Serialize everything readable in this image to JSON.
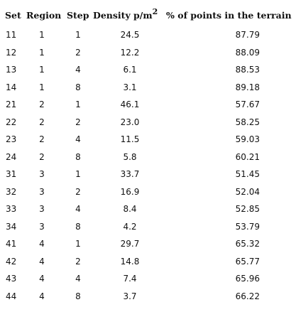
{
  "header": {
    "set": "Set",
    "region": "Region",
    "step": "Step",
    "density": "Density p/m",
    "density_sup": "2",
    "pct": "% of points in the terrain"
  },
  "rows": [
    {
      "set": "11",
      "region": "1",
      "step": "1",
      "density": "24.5",
      "pct": "87.79"
    },
    {
      "set": "12",
      "region": "1",
      "step": "2",
      "density": "12.2",
      "pct": "88.09"
    },
    {
      "set": "13",
      "region": "1",
      "step": "4",
      "density": "6.1",
      "pct": "88.53"
    },
    {
      "set": "14",
      "region": "1",
      "step": "8",
      "density": "3.1",
      "pct": "89.18"
    },
    {
      "set": "21",
      "region": "2",
      "step": "1",
      "density": "46.1",
      "pct": "57.67"
    },
    {
      "set": "22",
      "region": "2",
      "step": "2",
      "density": "23.0",
      "pct": "58.25"
    },
    {
      "set": "23",
      "region": "2",
      "step": "4",
      "density": "11.5",
      "pct": "59.03"
    },
    {
      "set": "24",
      "region": "2",
      "step": "8",
      "density": "5.8",
      "pct": "60.21"
    },
    {
      "set": "31",
      "region": "3",
      "step": "1",
      "density": "33.7",
      "pct": "51.45"
    },
    {
      "set": "32",
      "region": "3",
      "step": "2",
      "density": "16.9",
      "pct": "52.04"
    },
    {
      "set": "33",
      "region": "3",
      "step": "4",
      "density": "8.4",
      "pct": "52.85"
    },
    {
      "set": "34",
      "region": "3",
      "step": "8",
      "density": "4.2",
      "pct": "53.79"
    },
    {
      "set": "41",
      "region": "4",
      "step": "1",
      "density": "29.7",
      "pct": "65.32"
    },
    {
      "set": "42",
      "region": "4",
      "step": "2",
      "density": "14.8",
      "pct": "65.77"
    },
    {
      "set": "43",
      "region": "4",
      "step": "4",
      "density": "7.4",
      "pct": "65.96"
    },
    {
      "set": "44",
      "region": "4",
      "step": "8",
      "density": "3.7",
      "pct": "66.22"
    }
  ]
}
